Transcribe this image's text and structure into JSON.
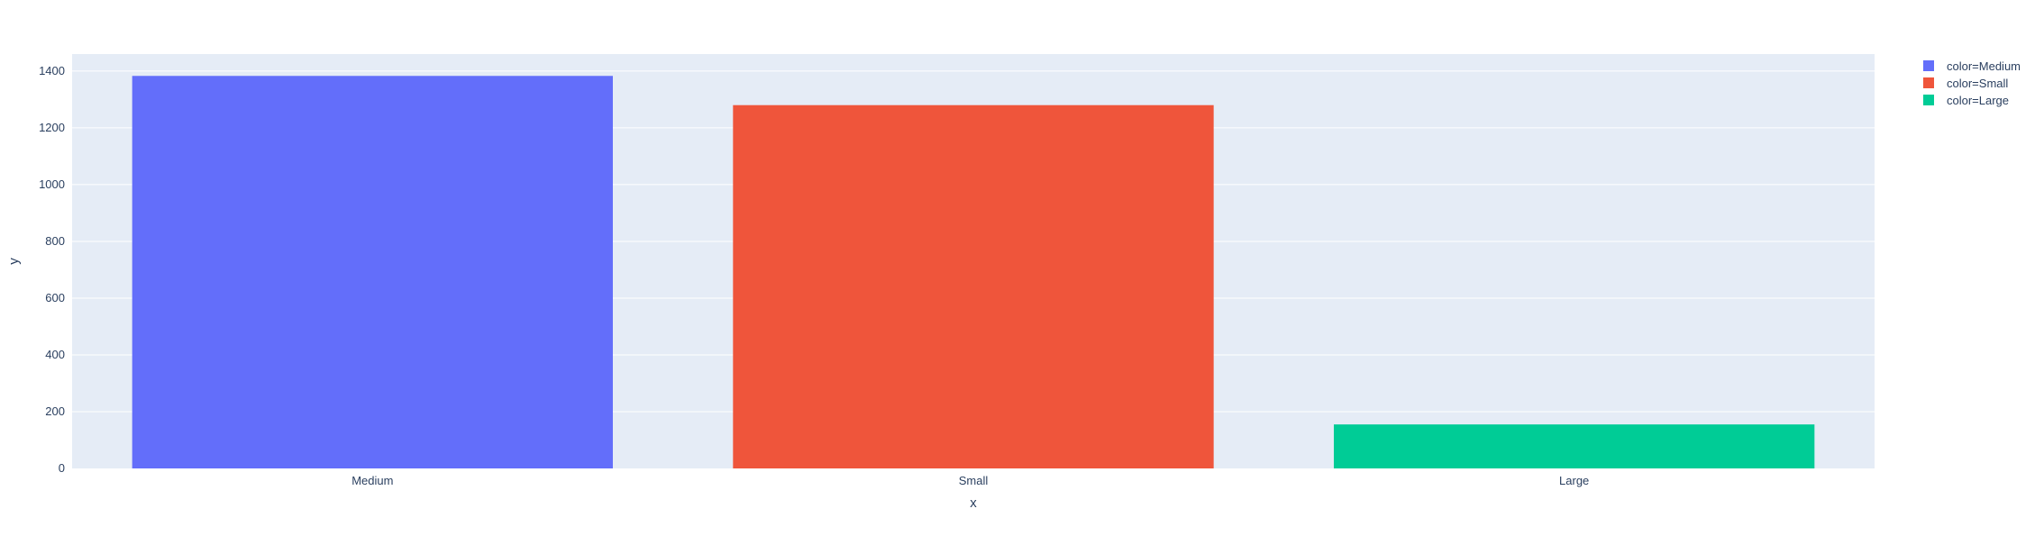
{
  "chart_data": {
    "type": "bar",
    "categories": [
      "Medium",
      "Small",
      "Large"
    ],
    "series": [
      {
        "name": "color=Medium",
        "category": "Medium",
        "value": 1383,
        "color": "#636efa"
      },
      {
        "name": "color=Small",
        "category": "Small",
        "value": 1280,
        "color": "#ef553b"
      },
      {
        "name": "color=Large",
        "category": "Large",
        "value": 155,
        "color": "#00cc96"
      }
    ],
    "title": "",
    "xlabel": "x",
    "ylabel": "y",
    "ylim": [
      0,
      1460
    ],
    "yticks": [
      0,
      200,
      400,
      600,
      800,
      1000,
      1200,
      1400
    ],
    "grid": true,
    "legend_position": "top-right",
    "colors": {
      "plot_background": "#e5ecf6",
      "grid": "#ffffff",
      "text": "#2a3f5f"
    }
  }
}
